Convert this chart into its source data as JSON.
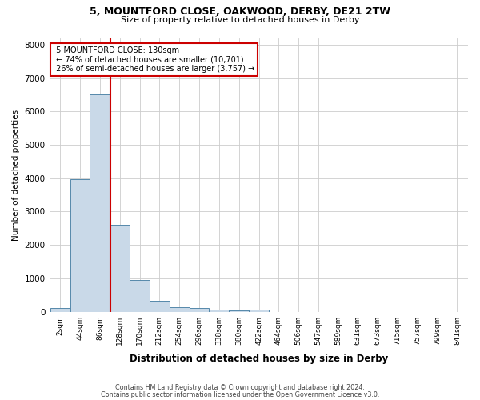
{
  "title_line1": "5, MOUNTFORD CLOSE, OAKWOOD, DERBY, DE21 2TW",
  "title_line2": "Size of property relative to detached houses in Derby",
  "xlabel": "Distribution of detached houses by size in Derby",
  "ylabel": "Number of detached properties",
  "footnote1": "Contains HM Land Registry data © Crown copyright and database right 2024.",
  "footnote2": "Contains public sector information licensed under the Open Government Licence v3.0.",
  "bin_labels": [
    "2sqm",
    "44sqm",
    "86sqm",
    "128sqm",
    "170sqm",
    "212sqm",
    "254sqm",
    "296sqm",
    "338sqm",
    "380sqm",
    "422sqm",
    "464sqm",
    "506sqm",
    "547sqm",
    "589sqm",
    "631sqm",
    "673sqm",
    "715sqm",
    "757sqm",
    "799sqm",
    "841sqm"
  ],
  "bin_edges": [
    2,
    44,
    86,
    128,
    170,
    212,
    254,
    296,
    338,
    380,
    422,
    464,
    506,
    547,
    589,
    631,
    673,
    715,
    757,
    799,
    841
  ],
  "bar_heights": [
    100,
    3980,
    6520,
    2600,
    950,
    320,
    130,
    105,
    70,
    50,
    70,
    0,
    0,
    0,
    0,
    0,
    0,
    0,
    0,
    0
  ],
  "bar_color": "#c9d9e8",
  "bar_edgecolor": "#5588aa",
  "property_size": 130,
  "red_line_color": "#cc0000",
  "annotation_text_line1": "5 MOUNTFORD CLOSE: 130sqm",
  "annotation_text_line2": "← 74% of detached houses are smaller (10,701)",
  "annotation_text_line3": "26% of semi-detached houses are larger (3,757) →",
  "annotation_box_color": "#ffffff",
  "annotation_box_edgecolor": "#cc0000",
  "ylim": [
    0,
    8200
  ],
  "yticks": [
    0,
    1000,
    2000,
    3000,
    4000,
    5000,
    6000,
    7000,
    8000
  ],
  "background_color": "#ffffff",
  "grid_color": "#cccccc",
  "bin_width": 42
}
